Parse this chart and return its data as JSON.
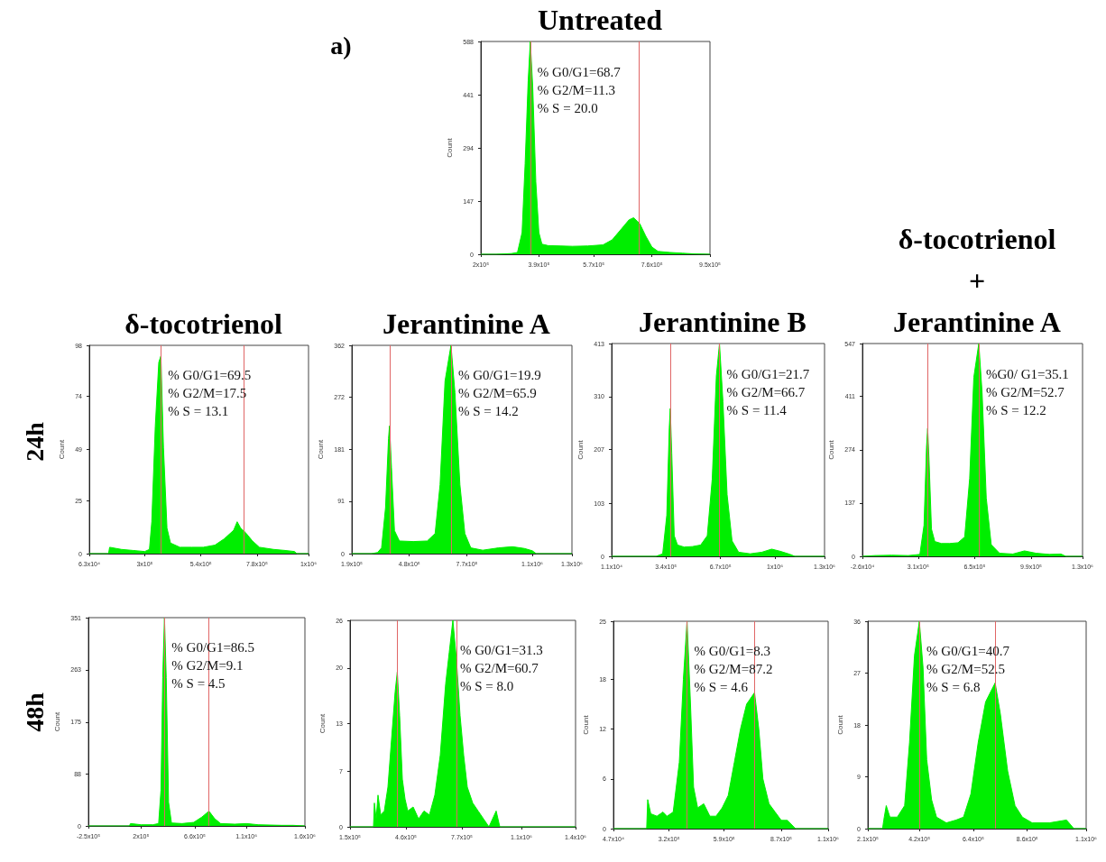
{
  "chart_data": [
    {
      "type": "area",
      "title": "Untreated",
      "ylabel": "Count",
      "color": "#00ee00",
      "x": [
        200000,
        250000,
        300000,
        320000,
        335000,
        345000,
        355000,
        362000,
        370000,
        380000,
        390000,
        400000,
        420000,
        460000,
        500000,
        550000,
        600000,
        630000,
        660000,
        685000,
        700000,
        720000,
        740000,
        760000,
        780000,
        820000,
        860000,
        900000,
        950000
      ],
      "values": [
        0,
        0,
        2,
        5,
        60,
        250,
        480,
        588,
        460,
        200,
        60,
        28,
        24,
        23,
        22,
        23,
        26,
        40,
        70,
        95,
        101,
        85,
        50,
        20,
        8,
        5,
        3,
        1,
        0
      ],
      "xlim": [
        200000,
        950000
      ],
      "xticks": [
        {
          "value": 200000,
          "label": "2x10⁵"
        },
        {
          "value": 390000,
          "label": "3.9x10⁵"
        },
        {
          "value": 570000,
          "label": "5.7x10⁵"
        },
        {
          "value": 760000,
          "label": "7.6x10⁵"
        },
        {
          "value": 950000,
          "label": "9.5x10⁵"
        }
      ],
      "ylim": [
        0,
        588
      ],
      "yticks": [
        0,
        147,
        294,
        441,
        588
      ],
      "ref_lines": [
        {
          "axis": "x",
          "value": 362000,
          "color": "#e06666"
        },
        {
          "axis": "x",
          "value": 717000,
          "color": "#e06666"
        }
      ],
      "annotations": [
        "% G0/G1=68.7",
        "% G2/M=11.3",
        "% S = 20.0"
      ]
    },
    {
      "type": "area",
      "title": "δ-tocotrienol",
      "ylabel": "Count",
      "color": "#00ee00",
      "x": [
        63000,
        145000,
        150000,
        200000,
        250000,
        300000,
        320000,
        330000,
        345000,
        360000,
        369000,
        380000,
        395000,
        410000,
        450000,
        500000,
        550000,
        600000,
        640000,
        680000,
        695000,
        710000,
        730000,
        760000,
        790000,
        850000,
        900000,
        940000,
        950000,
        1000000
      ],
      "values": [
        0,
        0,
        3,
        2,
        1.5,
        1,
        2,
        15,
        60,
        90,
        93,
        50,
        12,
        5,
        3,
        3,
        3,
        4,
        7,
        11,
        15,
        12,
        10,
        6,
        3,
        2,
        1.5,
        1,
        0,
        0
      ],
      "xlim": [
        63000,
        1000000
      ],
      "xticks": [
        {
          "value": 63000,
          "label": "6.3x10⁴"
        },
        {
          "value": 300000,
          "label": "3x10⁵"
        },
        {
          "value": 540000,
          "label": "5.4x10⁵"
        },
        {
          "value": 780000,
          "label": "7.8x10⁵"
        },
        {
          "value": 1000000,
          "label": "1x10⁶"
        }
      ],
      "ylim": [
        0,
        98
      ],
      "yticks": [
        0,
        25,
        49,
        74,
        98
      ],
      "ref_lines": [
        {
          "axis": "x",
          "value": 369000,
          "color": "#e06666"
        },
        {
          "axis": "x",
          "value": 724000,
          "color": "#e06666"
        }
      ],
      "annotations": [
        "% G0/G1=69.5",
        "% G2/M=17.5",
        "% S = 13.1"
      ]
    },
    {
      "type": "area",
      "title": "Jerantinine A",
      "ylabel": "Count",
      "color": "#00ee00",
      "x": [
        190000,
        290000,
        320000,
        340000,
        360000,
        375000,
        380000,
        390000,
        405000,
        430000,
        500000,
        570000,
        610000,
        635000,
        660000,
        690000,
        710000,
        735000,
        760000,
        790000,
        850000,
        930000,
        1000000,
        1060000,
        1100000,
        1120000,
        1300000
      ],
      "values": [
        0,
        0,
        2,
        10,
        80,
        200,
        222,
        150,
        40,
        22,
        21,
        22,
        35,
        120,
        300,
        362,
        280,
        120,
        35,
        10,
        6,
        10,
        12,
        9,
        5,
        0,
        0
      ],
      "xlim": [
        190000,
        1300000
      ],
      "xticks": [
        {
          "value": 190000,
          "label": "1.9x10⁵"
        },
        {
          "value": 480000,
          "label": "4.8x10⁵"
        },
        {
          "value": 770000,
          "label": "7.7x10⁵"
        },
        {
          "value": 1100000,
          "label": "1.1x10⁶"
        },
        {
          "value": 1300000,
          "label": "1.3x10⁶"
        }
      ],
      "ylim": [
        0,
        362
      ],
      "yticks": [
        0,
        91,
        181,
        272,
        362
      ],
      "ref_lines": [
        {
          "axis": "x",
          "value": 380000,
          "color": "#e06666"
        },
        {
          "axis": "x",
          "value": 690000,
          "color": "#e06666"
        }
      ],
      "annotations": [
        "% G0/G1=19.9",
        "% G2/M=65.9",
        "% S = 14.2"
      ]
    },
    {
      "type": "area",
      "title": "Jerantinine B",
      "ylabel": "Count",
      "color": "#00ee00",
      "x": [
        11000,
        280000,
        320000,
        345000,
        360000,
        366000,
        375000,
        390000,
        410000,
        450000,
        500000,
        550000,
        590000,
        620000,
        645000,
        664000,
        685000,
        710000,
        740000,
        780000,
        850000,
        920000,
        980000,
        1030000,
        1090000,
        1120000,
        1300000
      ],
      "values": [
        0,
        0,
        5,
        80,
        250,
        287,
        200,
        40,
        22,
        18,
        19,
        22,
        40,
        150,
        350,
        413,
        300,
        120,
        30,
        8,
        5,
        8,
        14,
        10,
        4,
        0,
        0
      ],
      "xlim": [
        11000,
        1300000
      ],
      "xticks": [
        {
          "value": 11000,
          "label": "1.1x10⁴"
        },
        {
          "value": 340000,
          "label": "3.4x10⁵"
        },
        {
          "value": 670000,
          "label": "6.7x10⁵"
        },
        {
          "value": 1000000,
          "label": "1x10⁶"
        },
        {
          "value": 1300000,
          "label": "1.3x10⁶"
        }
      ],
      "ylim": [
        0,
        413
      ],
      "yticks": [
        0,
        103,
        207,
        310,
        413
      ],
      "ref_lines": [
        {
          "axis": "x",
          "value": 366000,
          "color": "#e06666"
        },
        {
          "axis": "x",
          "value": 664000,
          "color": "#e06666"
        }
      ],
      "annotations": [
        "% G0/G1=21.7",
        "% G2/M=66.7",
        "% S = 11.4"
      ]
    },
    {
      "type": "area",
      "title": "δ-tocotrienol\n+\nJerantinine A",
      "ylabel": "Count",
      "color": "#00ee00",
      "x": [
        -26000,
        50000,
        150000,
        250000,
        320000,
        345000,
        360000,
        367000,
        375000,
        390000,
        410000,
        450000,
        500000,
        550000,
        590000,
        620000,
        645000,
        675000,
        695000,
        720000,
        750000,
        800000,
        880000,
        950000,
        1020000,
        1100000,
        1170000,
        1200000,
        1300000
      ],
      "values": [
        0,
        2,
        3,
        2,
        5,
        80,
        280,
        329,
        250,
        70,
        38,
        33,
        33,
        35,
        50,
        200,
        460,
        547,
        420,
        150,
        30,
        8,
        6,
        14,
        8,
        5,
        6,
        0,
        0
      ],
      "xlim": [
        -26000,
        1300000
      ],
      "xticks": [
        {
          "value": -26000,
          "label": "-2.6x10⁴"
        },
        {
          "value": 310000,
          "label": "3.1x10⁵"
        },
        {
          "value": 650000,
          "label": "6.5x10⁵"
        },
        {
          "value": 990000,
          "label": "9.9x10⁵"
        },
        {
          "value": 1300000,
          "label": "1.3x10⁶"
        }
      ],
      "ylim": [
        0,
        547
      ],
      "yticks": [
        0,
        137,
        274,
        411,
        547
      ],
      "ref_lines": [
        {
          "axis": "x",
          "value": 367000,
          "color": "#e06666"
        },
        {
          "axis": "x",
          "value": 675000,
          "color": "#e06666"
        }
      ],
      "annotations": [
        "%G0/ G1=35.1",
        "% G2/M=52.7",
        "% S = 12.2"
      ]
    },
    {
      "type": "area",
      "ylabel": "Count",
      "color": "#00ee00",
      "x": [
        -250000,
        100000,
        110000,
        200000,
        300000,
        350000,
        370000,
        385000,
        400000,
        415000,
        435000,
        460000,
        550000,
        650000,
        720000,
        780000,
        830000,
        880000,
        1000000,
        1100000,
        1200000,
        1400000,
        1500000,
        1600000
      ],
      "values": [
        0,
        0,
        4,
        2,
        2,
        4,
        60,
        250,
        351,
        250,
        40,
        5,
        4,
        6,
        15,
        25,
        12,
        4,
        3,
        4,
        2,
        1,
        1,
        0
      ],
      "xlim": [
        -250000,
        1600000
      ],
      "xticks": [
        {
          "value": -250000,
          "label": "-2.5x10⁵"
        },
        {
          "value": 200000,
          "label": "2x10⁵"
        },
        {
          "value": 660000,
          "label": "6.6x10⁵"
        },
        {
          "value": 1100000,
          "label": "1.1x10⁶"
        },
        {
          "value": 1600000,
          "label": "1.6x10⁶"
        }
      ],
      "ylim": [
        0,
        351
      ],
      "yticks": [
        0,
        88,
        175,
        263,
        351
      ],
      "ref_lines": [
        {
          "axis": "x",
          "value": 402000,
          "color": "#e06666"
        },
        {
          "axis": "x",
          "value": 780000,
          "color": "#e06666"
        }
      ],
      "annotations": [
        "% G0/G1=86.5",
        "% G2/M=9.1",
        "% S = 4.5"
      ]
    },
    {
      "type": "area",
      "ylabel": "Count",
      "color": "#00ee00",
      "x": [
        150000,
        280000,
        285000,
        295000,
        305000,
        320000,
        340000,
        360000,
        380000,
        400000,
        412000,
        425000,
        440000,
        455000,
        470000,
        500000,
        530000,
        560000,
        590000,
        620000,
        650000,
        680000,
        700000,
        720000,
        740000,
        760000,
        780000,
        800000,
        830000,
        860000,
        890000,
        920000,
        960000,
        980000,
        1000000,
        1400000
      ],
      "values": [
        0,
        0,
        3,
        1,
        4,
        1.5,
        2,
        5,
        11,
        17,
        19.5,
        14,
        6,
        3.5,
        2,
        2.5,
        1,
        2,
        1.5,
        4,
        9,
        18,
        22,
        26,
        21,
        14,
        9,
        5,
        3,
        2,
        1,
        0,
        2,
        0,
        0,
        0
      ],
      "xlim": [
        150000,
        1400000
      ],
      "xticks": [
        {
          "value": 150000,
          "label": "1.5x10⁵"
        },
        {
          "value": 460000,
          "label": "4.6x10⁵"
        },
        {
          "value": 770000,
          "label": "7.7x10⁵"
        },
        {
          "value": 1100000,
          "label": "1.1x10⁶"
        },
        {
          "value": 1400000,
          "label": "1.4x10⁶"
        }
      ],
      "ylim": [
        0,
        26
      ],
      "yticks": [
        0,
        7,
        13,
        20,
        26
      ],
      "ref_lines": [
        {
          "axis": "x",
          "value": 412000,
          "color": "#e06666"
        },
        {
          "axis": "x",
          "value": 740000,
          "color": "#e06666"
        }
      ],
      "annotations": [
        "% G0/G1=31.3",
        "% G2/M=60.7",
        "% S = 8.0"
      ]
    },
    {
      "type": "area",
      "ylabel": "Count",
      "color": "#00ee00",
      "x": [
        47000,
        210000,
        215000,
        230000,
        260000,
        290000,
        310000,
        340000,
        370000,
        390000,
        408000,
        425000,
        440000,
        460000,
        490000,
        520000,
        550000,
        580000,
        610000,
        640000,
        670000,
        700000,
        739000,
        760000,
        780000,
        810000,
        840000,
        870000,
        900000,
        940000,
        1100000
      ],
      "values": [
        0,
        0,
        3.5,
        1.8,
        1.5,
        2,
        1.5,
        2,
        8,
        18,
        25,
        15,
        5,
        2.5,
        3,
        1.5,
        1.5,
        2.5,
        4,
        8,
        12,
        15,
        16.4,
        12,
        6,
        3,
        2,
        1,
        1,
        0,
        0
      ],
      "xlim": [
        47000,
        1100000
      ],
      "xticks": [
        {
          "value": 47000,
          "label": "4.7x10⁴"
        },
        {
          "value": 320000,
          "label": "3.2x10⁵"
        },
        {
          "value": 590000,
          "label": "5.9x10⁵"
        },
        {
          "value": 870000,
          "label": "8.7x10⁵"
        },
        {
          "value": 1100000,
          "label": "1.1x10⁶"
        }
      ],
      "ylim": [
        0,
        25
      ],
      "yticks": [
        0,
        6,
        12,
        18,
        25
      ],
      "ref_lines": [
        {
          "axis": "x",
          "value": 408000,
          "color": "#e06666"
        },
        {
          "axis": "x",
          "value": 739000,
          "color": "#e06666"
        }
      ],
      "annotations": [
        "% G0/G1=8.3",
        "% G2/M=87.2",
        "% S = 4.6"
      ]
    },
    {
      "type": "area",
      "ylabel": "Count",
      "color": "#00ee00",
      "x": [
        210000,
        270000,
        275000,
        285000,
        300000,
        330000,
        360000,
        380000,
        400000,
        420000,
        435000,
        450000,
        470000,
        490000,
        530000,
        570000,
        600000,
        630000,
        660000,
        690000,
        729000,
        750000,
        780000,
        810000,
        840000,
        880000,
        950000,
        1020000,
        1050000,
        1100000
      ],
      "values": [
        0,
        0,
        1.5,
        4,
        2,
        2,
        4,
        15,
        30,
        36,
        28,
        12,
        5,
        2,
        1,
        1.5,
        2,
        6,
        15,
        22,
        25.3,
        20,
        10,
        4,
        2,
        1,
        1,
        1.5,
        0,
        0
      ],
      "xlim": [
        210000,
        1100000
      ],
      "xticks": [
        {
          "value": 210000,
          "label": "2.1x10⁵"
        },
        {
          "value": 420000,
          "label": "4.2x10⁵"
        },
        {
          "value": 640000,
          "label": "6.4x10⁵"
        },
        {
          "value": 860000,
          "label": "8.6x10⁵"
        },
        {
          "value": 1100000,
          "label": "1.1x10⁶"
        }
      ],
      "ylim": [
        0,
        36
      ],
      "yticks": [
        0,
        9,
        18,
        27,
        36
      ],
      "ref_lines": [
        {
          "axis": "x",
          "value": 420000,
          "color": "#e06666"
        },
        {
          "axis": "x",
          "value": 729000,
          "color": "#e06666"
        }
      ],
      "annotations": [
        "% G0/G1=40.7",
        "% G2/M=52.5",
        "% S = 6.8"
      ]
    },
    {
      "type": "other",
      "annotations": [
        "a)",
        "24h",
        "48h"
      ]
    }
  ]
}
